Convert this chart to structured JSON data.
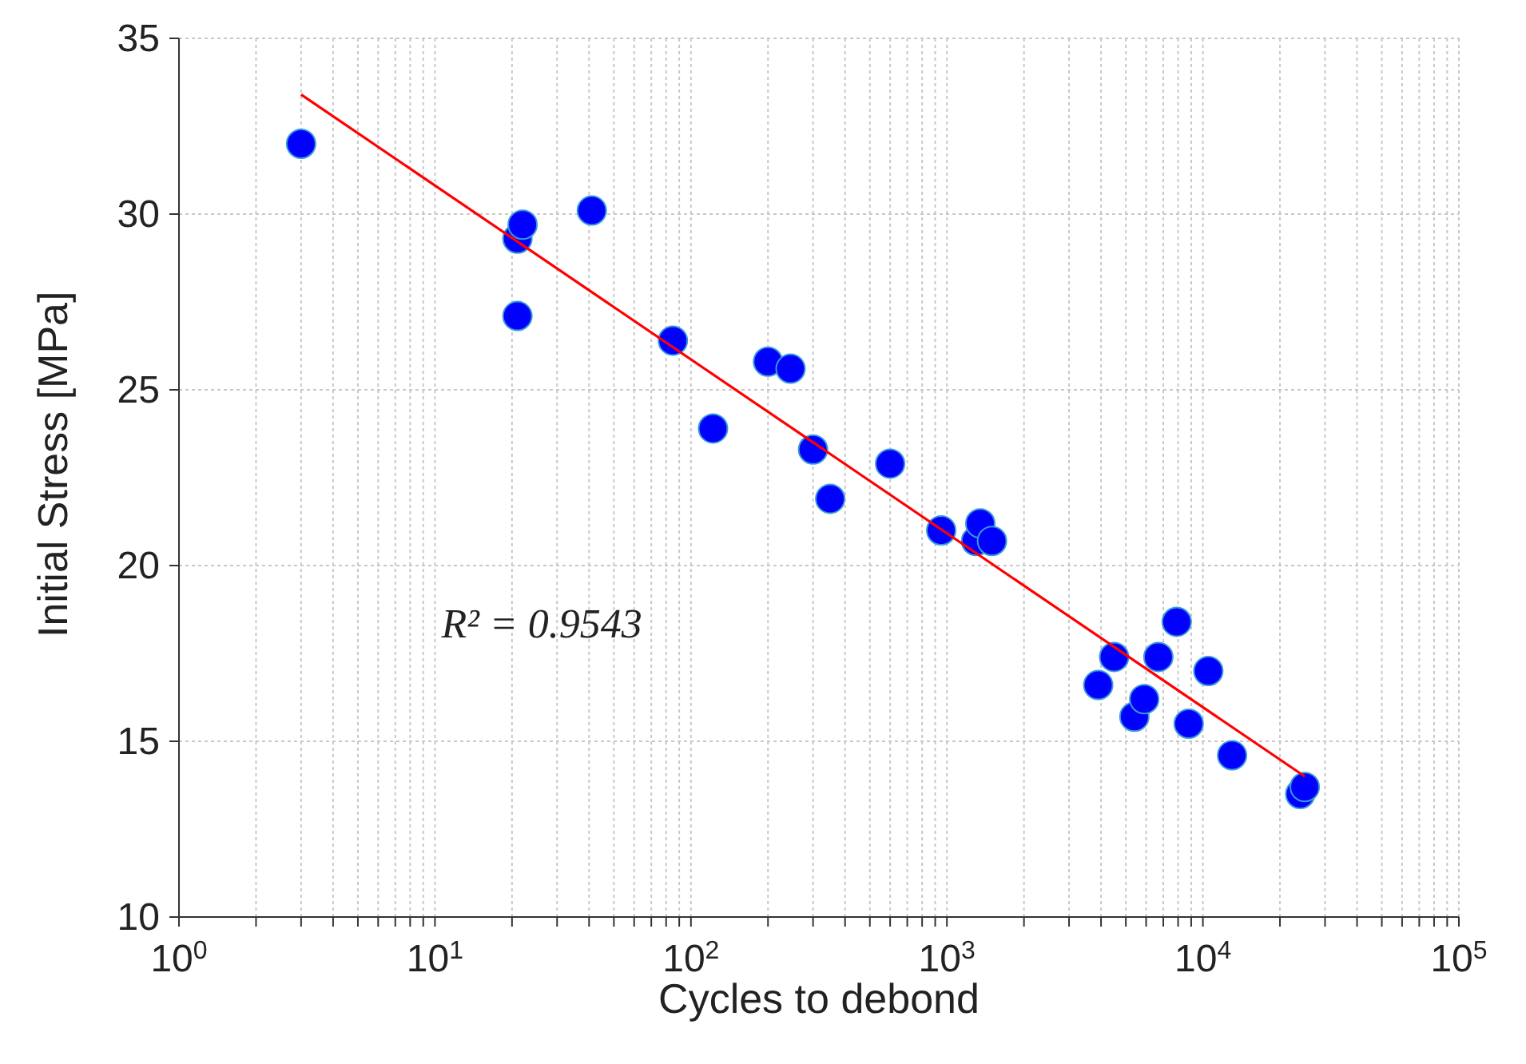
{
  "chart_data": {
    "type": "scatter",
    "xlabel": "Cycles to debond",
    "ylabel": "Initial Stress [MPa]",
    "log": "x",
    "grid": true,
    "marker": "circle",
    "xlim": [
      1,
      100000
    ],
    "ylim": [
      10,
      35
    ],
    "xticks": [
      {
        "value": 1,
        "label": "10$^{0}$"
      },
      {
        "value": 2,
        "label": null
      },
      {
        "value": 3,
        "label": null
      },
      {
        "value": 4,
        "label": null
      },
      {
        "value": 5,
        "label": null
      },
      {
        "value": 6,
        "label": null
      },
      {
        "value": 7,
        "label": null
      },
      {
        "value": 8,
        "label": null
      },
      {
        "value": 9,
        "label": null
      },
      {
        "value": 10,
        "label": "10$^{1}$"
      },
      {
        "value": 20,
        "label": null
      },
      {
        "value": 30,
        "label": null
      },
      {
        "value": 40,
        "label": null
      },
      {
        "value": 50,
        "label": null
      },
      {
        "value": 60,
        "label": null
      },
      {
        "value": 70,
        "label": null
      },
      {
        "value": 80,
        "label": null
      },
      {
        "value": 90,
        "label": null
      },
      {
        "value": 100,
        "label": "10$^{2}$"
      },
      {
        "value": 200,
        "label": null
      },
      {
        "value": 300,
        "label": null
      },
      {
        "value": 400,
        "label": null
      },
      {
        "value": 500,
        "label": null
      },
      {
        "value": 600,
        "label": null
      },
      {
        "value": 700,
        "label": null
      },
      {
        "value": 800,
        "label": null
      },
      {
        "value": 900,
        "label": null
      },
      {
        "value": 1000,
        "label": "10$^{3}$"
      },
      {
        "value": 2000,
        "label": null
      },
      {
        "value": 3000,
        "label": null
      },
      {
        "value": 4000,
        "label": null
      },
      {
        "value": 5000,
        "label": null
      },
      {
        "value": 6000,
        "label": null
      },
      {
        "value": 7000,
        "label": null
      },
      {
        "value": 8000,
        "label": null
      },
      {
        "value": 9000,
        "label": null
      },
      {
        "value": 10000,
        "label": "10$^{4}$"
      },
      {
        "value": 20000,
        "label": null
      },
      {
        "value": 30000,
        "label": null
      },
      {
        "value": 40000,
        "label": null
      },
      {
        "value": 50000,
        "label": null
      },
      {
        "value": 60000,
        "label": null
      },
      {
        "value": 70000,
        "label": null
      },
      {
        "value": 80000,
        "label": null
      },
      {
        "value": 90000,
        "label": null
      },
      {
        "value": 100000,
        "label": "10$^{5}$"
      }
    ],
    "yticks": [
      10,
      15,
      20,
      25,
      30,
      35
    ],
    "annotations": [
      "R² = 0.9543"
    ],
    "series": [
      {
        "color": "#0000ff",
        "x": [
          3,
          21,
          22,
          21,
          41,
          85,
          122,
          200,
          245,
          300,
          350,
          600,
          950,
          1300,
          1350,
          1500,
          3900,
          4500,
          5400,
          5900,
          6700,
          7900,
          8800,
          10500,
          13000,
          24000,
          25000
        ],
        "values": [
          32,
          29.3,
          29.7,
          27.1,
          30.1,
          26.4,
          23.9,
          25.8,
          25.6,
          23.3,
          21.9,
          22.9,
          21,
          20.7,
          21.2,
          20.7,
          16.6,
          17.4,
          15.7,
          16.2,
          17.4,
          18.4,
          15.5,
          17,
          14.6,
          13.5,
          13.7
        ]
      },
      {
        "type": "line",
        "color": "#ff0000",
        "marker": "none",
        "x": [
          3,
          25000
        ],
        "values": [
          33.4,
          14.0
        ]
      }
    ]
  }
}
